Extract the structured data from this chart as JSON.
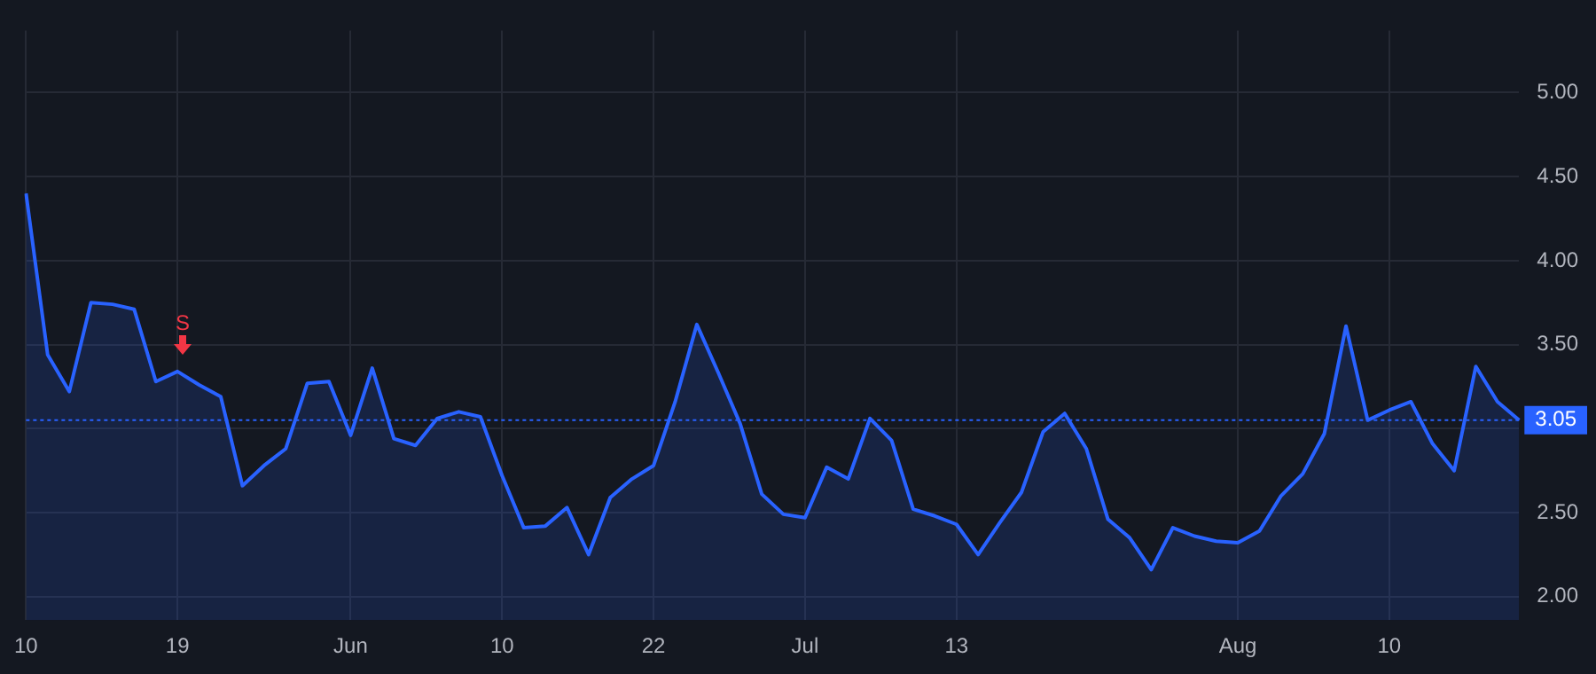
{
  "chart_data": {
    "type": "area",
    "categories": [
      "10",
      null,
      null,
      null,
      null,
      null,
      null,
      "19",
      null,
      null,
      null,
      null,
      null,
      null,
      null,
      "Jun",
      null,
      null,
      null,
      null,
      null,
      null,
      "10",
      null,
      null,
      null,
      null,
      null,
      null,
      "22",
      null,
      null,
      null,
      null,
      null,
      null,
      "Jul",
      null,
      null,
      null,
      null,
      null,
      null,
      "13",
      null,
      null,
      null,
      null,
      null,
      null,
      null,
      null,
      null,
      null,
      null,
      null,
      "Aug",
      null,
      null,
      null,
      null,
      null,
      null,
      "10",
      null,
      null,
      null,
      null,
      null,
      null
    ],
    "values": [
      4.4,
      3.44,
      3.22,
      3.75,
      3.74,
      3.71,
      3.28,
      3.34,
      3.26,
      3.19,
      2.66,
      2.78,
      2.88,
      3.27,
      3.28,
      2.96,
      3.36,
      2.94,
      2.9,
      3.06,
      3.1,
      3.07,
      2.72,
      2.41,
      2.42,
      2.53,
      2.25,
      2.59,
      2.7,
      2.78,
      3.16,
      3.62,
      3.33,
      3.03,
      2.61,
      2.49,
      2.47,
      2.77,
      2.7,
      3.06,
      2.93,
      2.52,
      2.48,
      2.43,
      2.25,
      2.44,
      2.62,
      2.98,
      3.09,
      2.88,
      2.46,
      2.35,
      2.16,
      2.41,
      2.36,
      2.33,
      2.32,
      2.39,
      2.6,
      2.73,
      2.97,
      3.61,
      3.05,
      3.11,
      3.16,
      2.91,
      2.75,
      3.37,
      3.16,
      3.05
    ],
    "color": "#2962ff",
    "ylim": [
      1.86,
      5.37
    ],
    "yticks": [
      {
        "value": 2,
        "label": "2.00"
      },
      {
        "value": 2.5,
        "label": "2.50"
      },
      {
        "value": 3,
        "label": null
      },
      {
        "value": 3.5,
        "label": "3.50"
      },
      {
        "value": 4,
        "label": "4.00"
      },
      {
        "value": 4.5,
        "label": "4.50"
      },
      {
        "value": 5,
        "label": "5.00"
      }
    ],
    "grid": true,
    "legend": false,
    "marker": "none",
    "line_style": "solid",
    "ref_lines": [
      {
        "axis": "y",
        "value": 3.05,
        "label": "3.05",
        "color": "#2962ff",
        "line_style": "dotted"
      }
    ],
    "annotations": [
      "S"
    ]
  }
}
